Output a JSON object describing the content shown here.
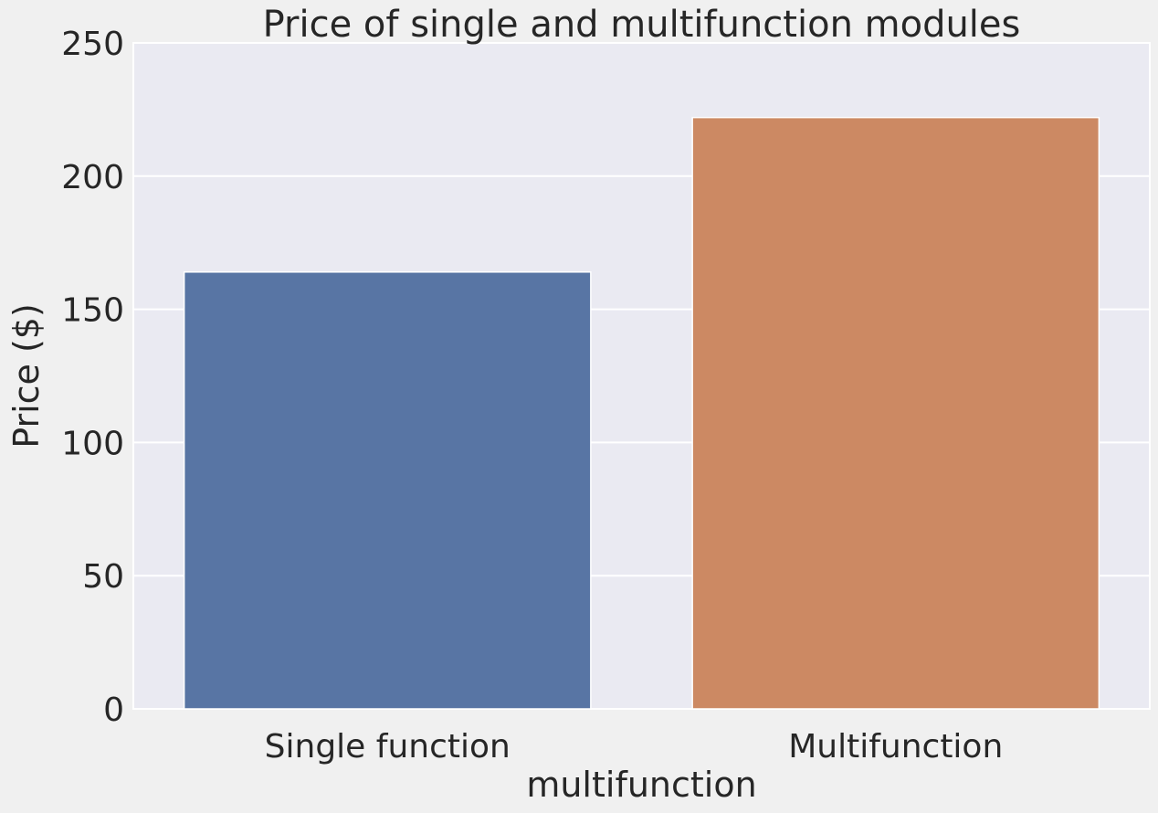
{
  "chart_data": {
    "type": "bar",
    "title": "Price of single and multifunction modules",
    "xlabel": "multifunction",
    "ylabel": "Price ($)",
    "categories": [
      "Single function",
      "Multifunction"
    ],
    "values": [
      164,
      222
    ],
    "ylim": [
      0,
      250
    ],
    "yticks": [
      "0",
      "50",
      "100",
      "150",
      "200",
      "250"
    ],
    "grid": true,
    "colors": [
      "#5875a4",
      "#cc8963"
    ],
    "plot_background": "#eaeaf2",
    "figure_background": "#f0f0f0",
    "grid_color": "#ffffff"
  }
}
